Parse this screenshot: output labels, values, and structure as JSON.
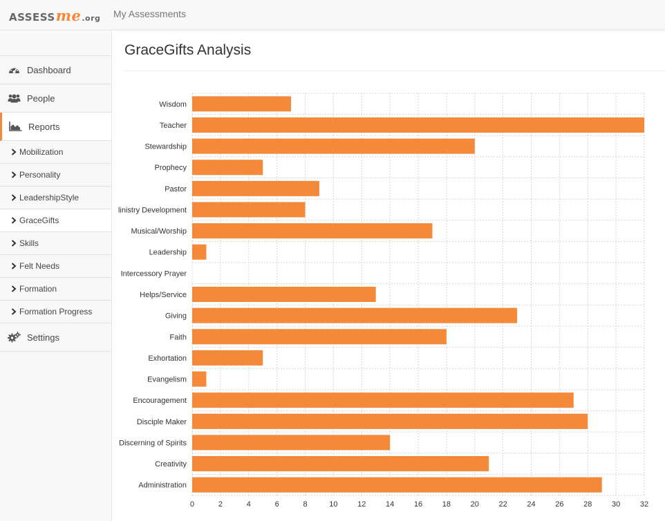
{
  "topbar": {
    "logo": {
      "part1": "ASSESS",
      "part2": "me",
      "part3": ".org"
    },
    "nav_link": "My Assessments"
  },
  "sidebar": {
    "items": [
      {
        "label": "Dashboard",
        "icon": "dashboard-icon"
      },
      {
        "label": "People",
        "icon": "users-icon"
      },
      {
        "label": "Reports",
        "icon": "area-chart-icon",
        "active": true
      },
      {
        "label": "Settings",
        "icon": "gears-icon"
      }
    ],
    "report_subitems": [
      {
        "label": "Mobilization"
      },
      {
        "label": "Personality"
      },
      {
        "label": "LeadershipStyle"
      },
      {
        "label": "GraceGifts",
        "current": true
      },
      {
        "label": "Skills"
      },
      {
        "label": "Felt Needs"
      },
      {
        "label": "Formation"
      },
      {
        "label": "Formation Progress"
      }
    ]
  },
  "main": {
    "title": "GraceGifts Analysis"
  },
  "colors": {
    "accent": "#f5893a",
    "bar": "#f5893a",
    "grid": "#d5d5d5"
  },
  "chart_data": {
    "type": "bar",
    "orientation": "horizontal",
    "title": "",
    "xlabel": "",
    "ylabel": "",
    "xlim": [
      0,
      32
    ],
    "xticks": [
      0,
      2,
      4,
      6,
      8,
      10,
      12,
      14,
      16,
      18,
      20,
      22,
      24,
      26,
      28,
      30,
      32
    ],
    "grid": true,
    "categories": [
      "Wisdom",
      "Teacher",
      "Stewardship",
      "Prophecy",
      "Pastor",
      "linistry Development",
      "Musical/Worship",
      "Leadership",
      "Intercessory Prayer",
      "Helps/Service",
      "Giving",
      "Faith",
      "Exhortation",
      "Evangelism",
      "Encouragement",
      "Disciple Maker",
      "Discerning of Spirits",
      "Creativity",
      "Administration"
    ],
    "values": [
      7,
      32,
      20,
      5,
      9,
      8,
      17,
      1,
      0,
      13,
      23,
      18,
      5,
      1,
      27,
      28,
      14,
      21,
      29
    ]
  }
}
